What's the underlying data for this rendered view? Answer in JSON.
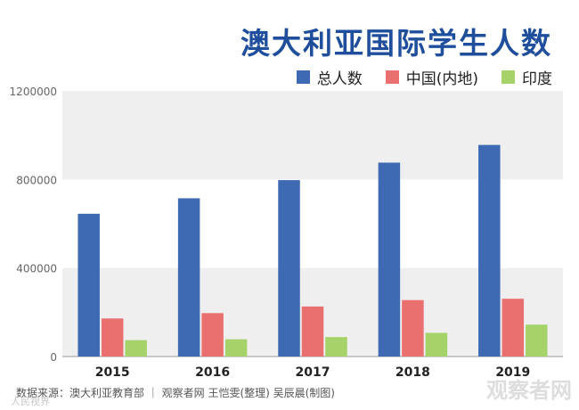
{
  "title": "澳大利亚国际学生人数",
  "source": "数据来源：澳大利亚教育部 ｜ 观察者网 王恺雯(整理) 吴辰晨(制图)",
  "watermark_left": "人民视界",
  "watermark_right": "观察者网",
  "colors": {
    "total": "#3e6ab3",
    "china": "#ea6f6f",
    "india": "#a6d26a",
    "band": "#efefef",
    "title": "#1f4e9c"
  },
  "chart_data": {
    "type": "bar",
    "title": "澳大利亚国际学生人数",
    "categories": [
      "2015",
      "2016",
      "2017",
      "2018",
      "2019"
    ],
    "series": [
      {
        "name": "总人数",
        "values": [
          645000,
          715000,
          797000,
          876000,
          956000
        ]
      },
      {
        "name": "中国(内地)",
        "values": [
          172000,
          196000,
          226000,
          255000,
          261000
        ]
      },
      {
        "name": "印度",
        "values": [
          74000,
          78000,
          88000,
          107000,
          144000
        ]
      }
    ],
    "yticks": [
      "0",
      "400000",
      "800000",
      "1200000"
    ],
    "ylim": [
      0,
      1200000
    ],
    "xlabel": "",
    "ylabel": "",
    "legend_position": "top-right",
    "grid": "alternating bands"
  }
}
